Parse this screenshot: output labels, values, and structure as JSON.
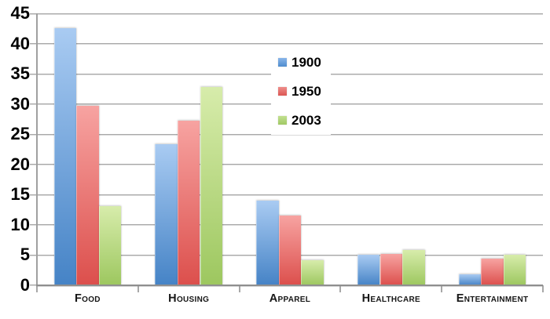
{
  "chart_data": {
    "type": "bar",
    "title": "",
    "xlabel": "",
    "ylabel": "",
    "categories": [
      "Food",
      "Housing",
      "Apparel",
      "Healthcare",
      "Entertainment"
    ],
    "series": [
      {
        "name": "1900",
        "values": [
          42.5,
          23.3,
          14.0,
          5.1,
          1.8
        ],
        "bar_gradient_top": "#a9cbf2",
        "bar_gradient_bottom": "#4583c6",
        "legend_gradient_top": "#8ab6e9",
        "legend_gradient_bottom": "#4f8cce"
      },
      {
        "name": "1950",
        "values": [
          29.7,
          27.2,
          11.5,
          5.2,
          4.4
        ],
        "bar_gradient_top": "#f7a3a1",
        "bar_gradient_bottom": "#dc4f4c",
        "legend_gradient_top": "#ee8e8b",
        "legend_gradient_bottom": "#dc5754"
      },
      {
        "name": "2003",
        "values": [
          13.1,
          32.8,
          4.2,
          5.9,
          5.1
        ],
        "bar_gradient_top": "#d7ecab",
        "bar_gradient_bottom": "#9dc75f",
        "legend_gradient_top": "#c2e090",
        "legend_gradient_bottom": "#a0c964"
      }
    ],
    "ylim": [
      0,
      45
    ],
    "ytick_step": 5,
    "yticks": [
      45,
      40,
      35,
      30,
      25,
      20,
      15,
      10,
      5,
      0
    ],
    "grid": true,
    "legend_position": "inside-upper-center"
  },
  "styles": {
    "background": "#ffffff",
    "gridline_color": "#a8a8a8",
    "axis_color": "#8f8f8f",
    "tick_color": "#a8a8a8",
    "text_color": "#000000"
  }
}
